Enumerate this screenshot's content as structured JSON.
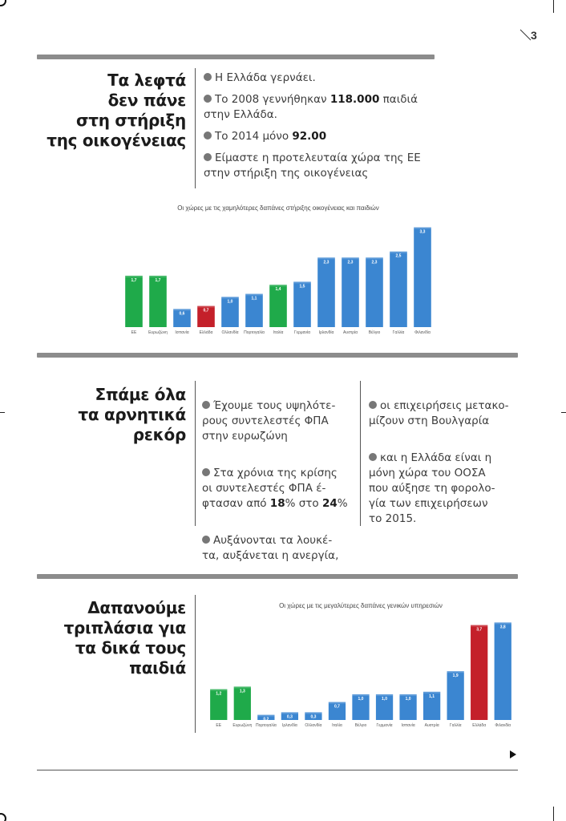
{
  "page": {
    "number": "3"
  },
  "section1": {
    "title": [
      "Τα λεφτά",
      "δεν πάνε",
      "στη στήριξη",
      "της οικογένειας"
    ],
    "bullets": [
      {
        "text": "Η Ελλάδα  γερνάει."
      },
      {
        "pre": "Το 2008 γεννήθηκαν ",
        "strong": "118.000",
        "post": " παιδιά στην Ελλάδα."
      },
      {
        "pre": "Το 2014 μόνο ",
        "strong": "92.00",
        "post": ""
      },
      {
        "text": "Είμαστε η προτελευταία χώρα της ΕΕ στην στήριξη της οικογένειας"
      }
    ]
  },
  "section2": {
    "title": [
      "Σπάμε όλα",
      "τα αρνητικά",
      "ρεκόρ"
    ],
    "col1": [
      "Έχουμε τους υψηλότε-\nρους συντελεστές ΦΠΑ\nστην ευρωζώνη",
      {
        "pre": "Στα χρόνια της κρίσης\nοι συντελεστές ΦΠΑ έ-\nφτασαν από ",
        "s1": "18",
        "mid": "% στο ",
        "s2": "24",
        "post": "%"
      },
      "Αυξάνονται τα λουκέ-\nτα, αυξάνεται η ανεργία,"
    ],
    "col2": [
      "οι επιχειρήσεις μετακο-\nμίζουν στη Βουλγαρία",
      "και η Ελλάδα είναι η\nμόνη χώρα του ΟΟΣΑ\nπου αύξησε τη φορολο-\nγία των επιχειρήσεων\nτο 2015."
    ]
  },
  "section3": {
    "title": [
      "Δαπανούμε",
      "τριπλάσια για",
      "τα δικά τους",
      "παιδιά"
    ]
  },
  "colors": {
    "green": "#1faa4a",
    "blue": "#3b86d1",
    "red": "#c4202a",
    "rule": "#8c8c8c"
  },
  "charts": [
    {
      "type": "bar",
      "title": "Οι χώρες με τις χαμηλότερες δαπάνες στήριξης οικογένειας και παιδιών",
      "categories": [
        "ΕΕ",
        "Ευρωζώνη",
        "Ισπανία",
        "Ελλάδα",
        "Ολλανδία",
        "Πορτογαλία",
        "Ιταλία",
        "Γερμανία",
        "Ιρλανδία",
        "Αυστρία",
        "Βέλγιο",
        "Γαλλία",
        "Φιλανδία"
      ],
      "values": [
        1.7,
        1.7,
        0.6,
        0.7,
        1.0,
        1.1,
        1.4,
        1.5,
        2.3,
        2.3,
        2.3,
        2.5,
        3.3
      ],
      "labels": [
        "1,7",
        "1,7",
        "0,6",
        "0,7",
        "1,0",
        "1,1",
        "1,4",
        "1,5",
        "2,3",
        "2,3",
        "2,3",
        "2,5",
        "3,3"
      ],
      "colors": [
        "green",
        "green",
        "blue",
        "red",
        "blue",
        "blue",
        "green",
        "blue",
        "blue",
        "blue",
        "blue",
        "blue",
        "blue"
      ],
      "ymax": 3.5
    },
    {
      "type": "bar",
      "title": "Οι χώρες με τις μεγαλύτερες δαπάνες γενικών υπηρεσιών",
      "categories": [
        "ΕΕ",
        "Ευρωζώνη",
        "Πορτογαλία",
        "Ιρλανδία",
        "Ολλανδία",
        "Ιταλία",
        "Βέλγιο",
        "Γερμανία",
        "Ισπανία",
        "Αυστρία",
        "Γαλλία",
        "Ελλάδα",
        "Φιλανδία"
      ],
      "values": [
        1.2,
        1.3,
        0.2,
        0.3,
        0.3,
        0.7,
        1.0,
        1.0,
        1.0,
        1.1,
        1.9,
        3.7,
        3.8
      ],
      "labels": [
        "1,2",
        "1,3",
        "0,2",
        "0,3",
        "0,3",
        "0,7",
        "1,0",
        "1,0",
        "1,0",
        "1,1",
        "1,9",
        "3,7",
        "3,8"
      ],
      "colors": [
        "green",
        "green",
        "blue",
        "blue",
        "blue",
        "blue",
        "blue",
        "blue",
        "blue",
        "blue",
        "blue",
        "red",
        "blue"
      ],
      "ymax": 4.0
    }
  ]
}
